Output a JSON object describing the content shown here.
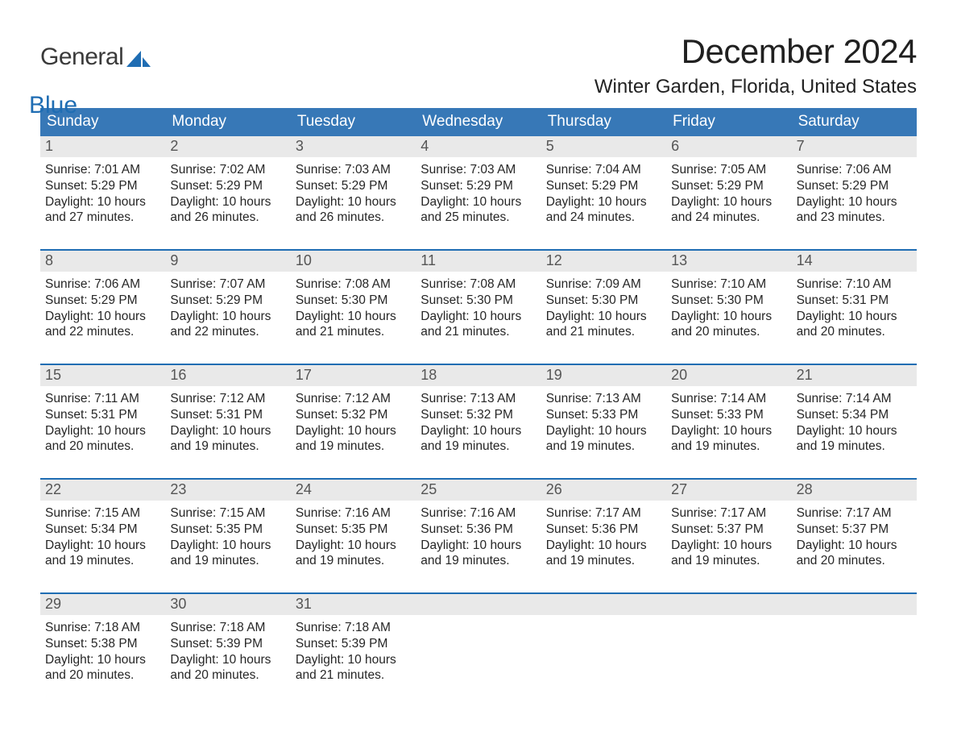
{
  "brand": {
    "part1": "General",
    "part2": "Blue"
  },
  "title": {
    "month": "December 2024",
    "location": "Winter Garden, Florida, United States"
  },
  "colors": {
    "header_blue": "#3778b7",
    "accent_blue": "#1f6db3",
    "daynum_bg": "#e9e9e9",
    "text": "#262626",
    "bg": "#ffffff"
  },
  "dow": [
    "Sunday",
    "Monday",
    "Tuesday",
    "Wednesday",
    "Thursday",
    "Friday",
    "Saturday"
  ],
  "labels": {
    "sunrise": "Sunrise: ",
    "sunset": "Sunset: ",
    "daylight1": "Daylight: ",
    "daylight2_prefix": "and ",
    "daylight2_suffix": " minutes."
  },
  "weeks": [
    [
      {
        "n": "1",
        "sunrise": "7:01 AM",
        "sunset": "5:29 PM",
        "dl_h": "10 hours",
        "dl_m": "27"
      },
      {
        "n": "2",
        "sunrise": "7:02 AM",
        "sunset": "5:29 PM",
        "dl_h": "10 hours",
        "dl_m": "26"
      },
      {
        "n": "3",
        "sunrise": "7:03 AM",
        "sunset": "5:29 PM",
        "dl_h": "10 hours",
        "dl_m": "26"
      },
      {
        "n": "4",
        "sunrise": "7:03 AM",
        "sunset": "5:29 PM",
        "dl_h": "10 hours",
        "dl_m": "25"
      },
      {
        "n": "5",
        "sunrise": "7:04 AM",
        "sunset": "5:29 PM",
        "dl_h": "10 hours",
        "dl_m": "24"
      },
      {
        "n": "6",
        "sunrise": "7:05 AM",
        "sunset": "5:29 PM",
        "dl_h": "10 hours",
        "dl_m": "24"
      },
      {
        "n": "7",
        "sunrise": "7:06 AM",
        "sunset": "5:29 PM",
        "dl_h": "10 hours",
        "dl_m": "23"
      }
    ],
    [
      {
        "n": "8",
        "sunrise": "7:06 AM",
        "sunset": "5:29 PM",
        "dl_h": "10 hours",
        "dl_m": "22"
      },
      {
        "n": "9",
        "sunrise": "7:07 AM",
        "sunset": "5:29 PM",
        "dl_h": "10 hours",
        "dl_m": "22"
      },
      {
        "n": "10",
        "sunrise": "7:08 AM",
        "sunset": "5:30 PM",
        "dl_h": "10 hours",
        "dl_m": "21"
      },
      {
        "n": "11",
        "sunrise": "7:08 AM",
        "sunset": "5:30 PM",
        "dl_h": "10 hours",
        "dl_m": "21"
      },
      {
        "n": "12",
        "sunrise": "7:09 AM",
        "sunset": "5:30 PM",
        "dl_h": "10 hours",
        "dl_m": "21"
      },
      {
        "n": "13",
        "sunrise": "7:10 AM",
        "sunset": "5:30 PM",
        "dl_h": "10 hours",
        "dl_m": "20"
      },
      {
        "n": "14",
        "sunrise": "7:10 AM",
        "sunset": "5:31 PM",
        "dl_h": "10 hours",
        "dl_m": "20"
      }
    ],
    [
      {
        "n": "15",
        "sunrise": "7:11 AM",
        "sunset": "5:31 PM",
        "dl_h": "10 hours",
        "dl_m": "20"
      },
      {
        "n": "16",
        "sunrise": "7:12 AM",
        "sunset": "5:31 PM",
        "dl_h": "10 hours",
        "dl_m": "19"
      },
      {
        "n": "17",
        "sunrise": "7:12 AM",
        "sunset": "5:32 PM",
        "dl_h": "10 hours",
        "dl_m": "19"
      },
      {
        "n": "18",
        "sunrise": "7:13 AM",
        "sunset": "5:32 PM",
        "dl_h": "10 hours",
        "dl_m": "19"
      },
      {
        "n": "19",
        "sunrise": "7:13 AM",
        "sunset": "5:33 PM",
        "dl_h": "10 hours",
        "dl_m": "19"
      },
      {
        "n": "20",
        "sunrise": "7:14 AM",
        "sunset": "5:33 PM",
        "dl_h": "10 hours",
        "dl_m": "19"
      },
      {
        "n": "21",
        "sunrise": "7:14 AM",
        "sunset": "5:34 PM",
        "dl_h": "10 hours",
        "dl_m": "19"
      }
    ],
    [
      {
        "n": "22",
        "sunrise": "7:15 AM",
        "sunset": "5:34 PM",
        "dl_h": "10 hours",
        "dl_m": "19"
      },
      {
        "n": "23",
        "sunrise": "7:15 AM",
        "sunset": "5:35 PM",
        "dl_h": "10 hours",
        "dl_m": "19"
      },
      {
        "n": "24",
        "sunrise": "7:16 AM",
        "sunset": "5:35 PM",
        "dl_h": "10 hours",
        "dl_m": "19"
      },
      {
        "n": "25",
        "sunrise": "7:16 AM",
        "sunset": "5:36 PM",
        "dl_h": "10 hours",
        "dl_m": "19"
      },
      {
        "n": "26",
        "sunrise": "7:17 AM",
        "sunset": "5:36 PM",
        "dl_h": "10 hours",
        "dl_m": "19"
      },
      {
        "n": "27",
        "sunrise": "7:17 AM",
        "sunset": "5:37 PM",
        "dl_h": "10 hours",
        "dl_m": "19"
      },
      {
        "n": "28",
        "sunrise": "7:17 AM",
        "sunset": "5:37 PM",
        "dl_h": "10 hours",
        "dl_m": "20"
      }
    ],
    [
      {
        "n": "29",
        "sunrise": "7:18 AM",
        "sunset": "5:38 PM",
        "dl_h": "10 hours",
        "dl_m": "20"
      },
      {
        "n": "30",
        "sunrise": "7:18 AM",
        "sunset": "5:39 PM",
        "dl_h": "10 hours",
        "dl_m": "20"
      },
      {
        "n": "31",
        "sunrise": "7:18 AM",
        "sunset": "5:39 PM",
        "dl_h": "10 hours",
        "dl_m": "21"
      },
      null,
      null,
      null,
      null
    ]
  ]
}
